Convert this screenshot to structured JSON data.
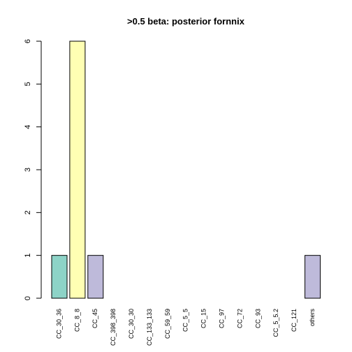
{
  "chart_data": {
    "type": "bar",
    "title": ">0.5 beta:  posterior fornnix",
    "xlabel": "",
    "ylabel": "",
    "ylim": [
      0,
      6
    ],
    "yticks": [
      0,
      1,
      2,
      3,
      4,
      5,
      6
    ],
    "categories": [
      "CC_30_36",
      "CC_8_8",
      "CC_45",
      "CC_398_398",
      "CC_30_30",
      "CC_133_133",
      "CC_59_59",
      "CC_5_5",
      "CC_15",
      "CC_97",
      "CC_72",
      "CC_93",
      "CC_5_5.2",
      "CC_121",
      "others"
    ],
    "values": [
      1,
      6,
      1,
      0,
      0,
      0,
      0,
      0,
      0,
      0,
      0,
      0,
      0,
      0,
      1
    ],
    "colors": [
      "#8DD3C7",
      "#FFFFB3",
      "#BEBADA",
      "#BEBADA",
      "#BEBADA",
      "#BEBADA",
      "#BEBADA",
      "#BEBADA",
      "#BEBADA",
      "#BEBADA",
      "#BEBADA",
      "#BEBADA",
      "#BEBADA",
      "#BEBADA",
      "#BEBADA"
    ],
    "grid": false,
    "legend": "none"
  }
}
